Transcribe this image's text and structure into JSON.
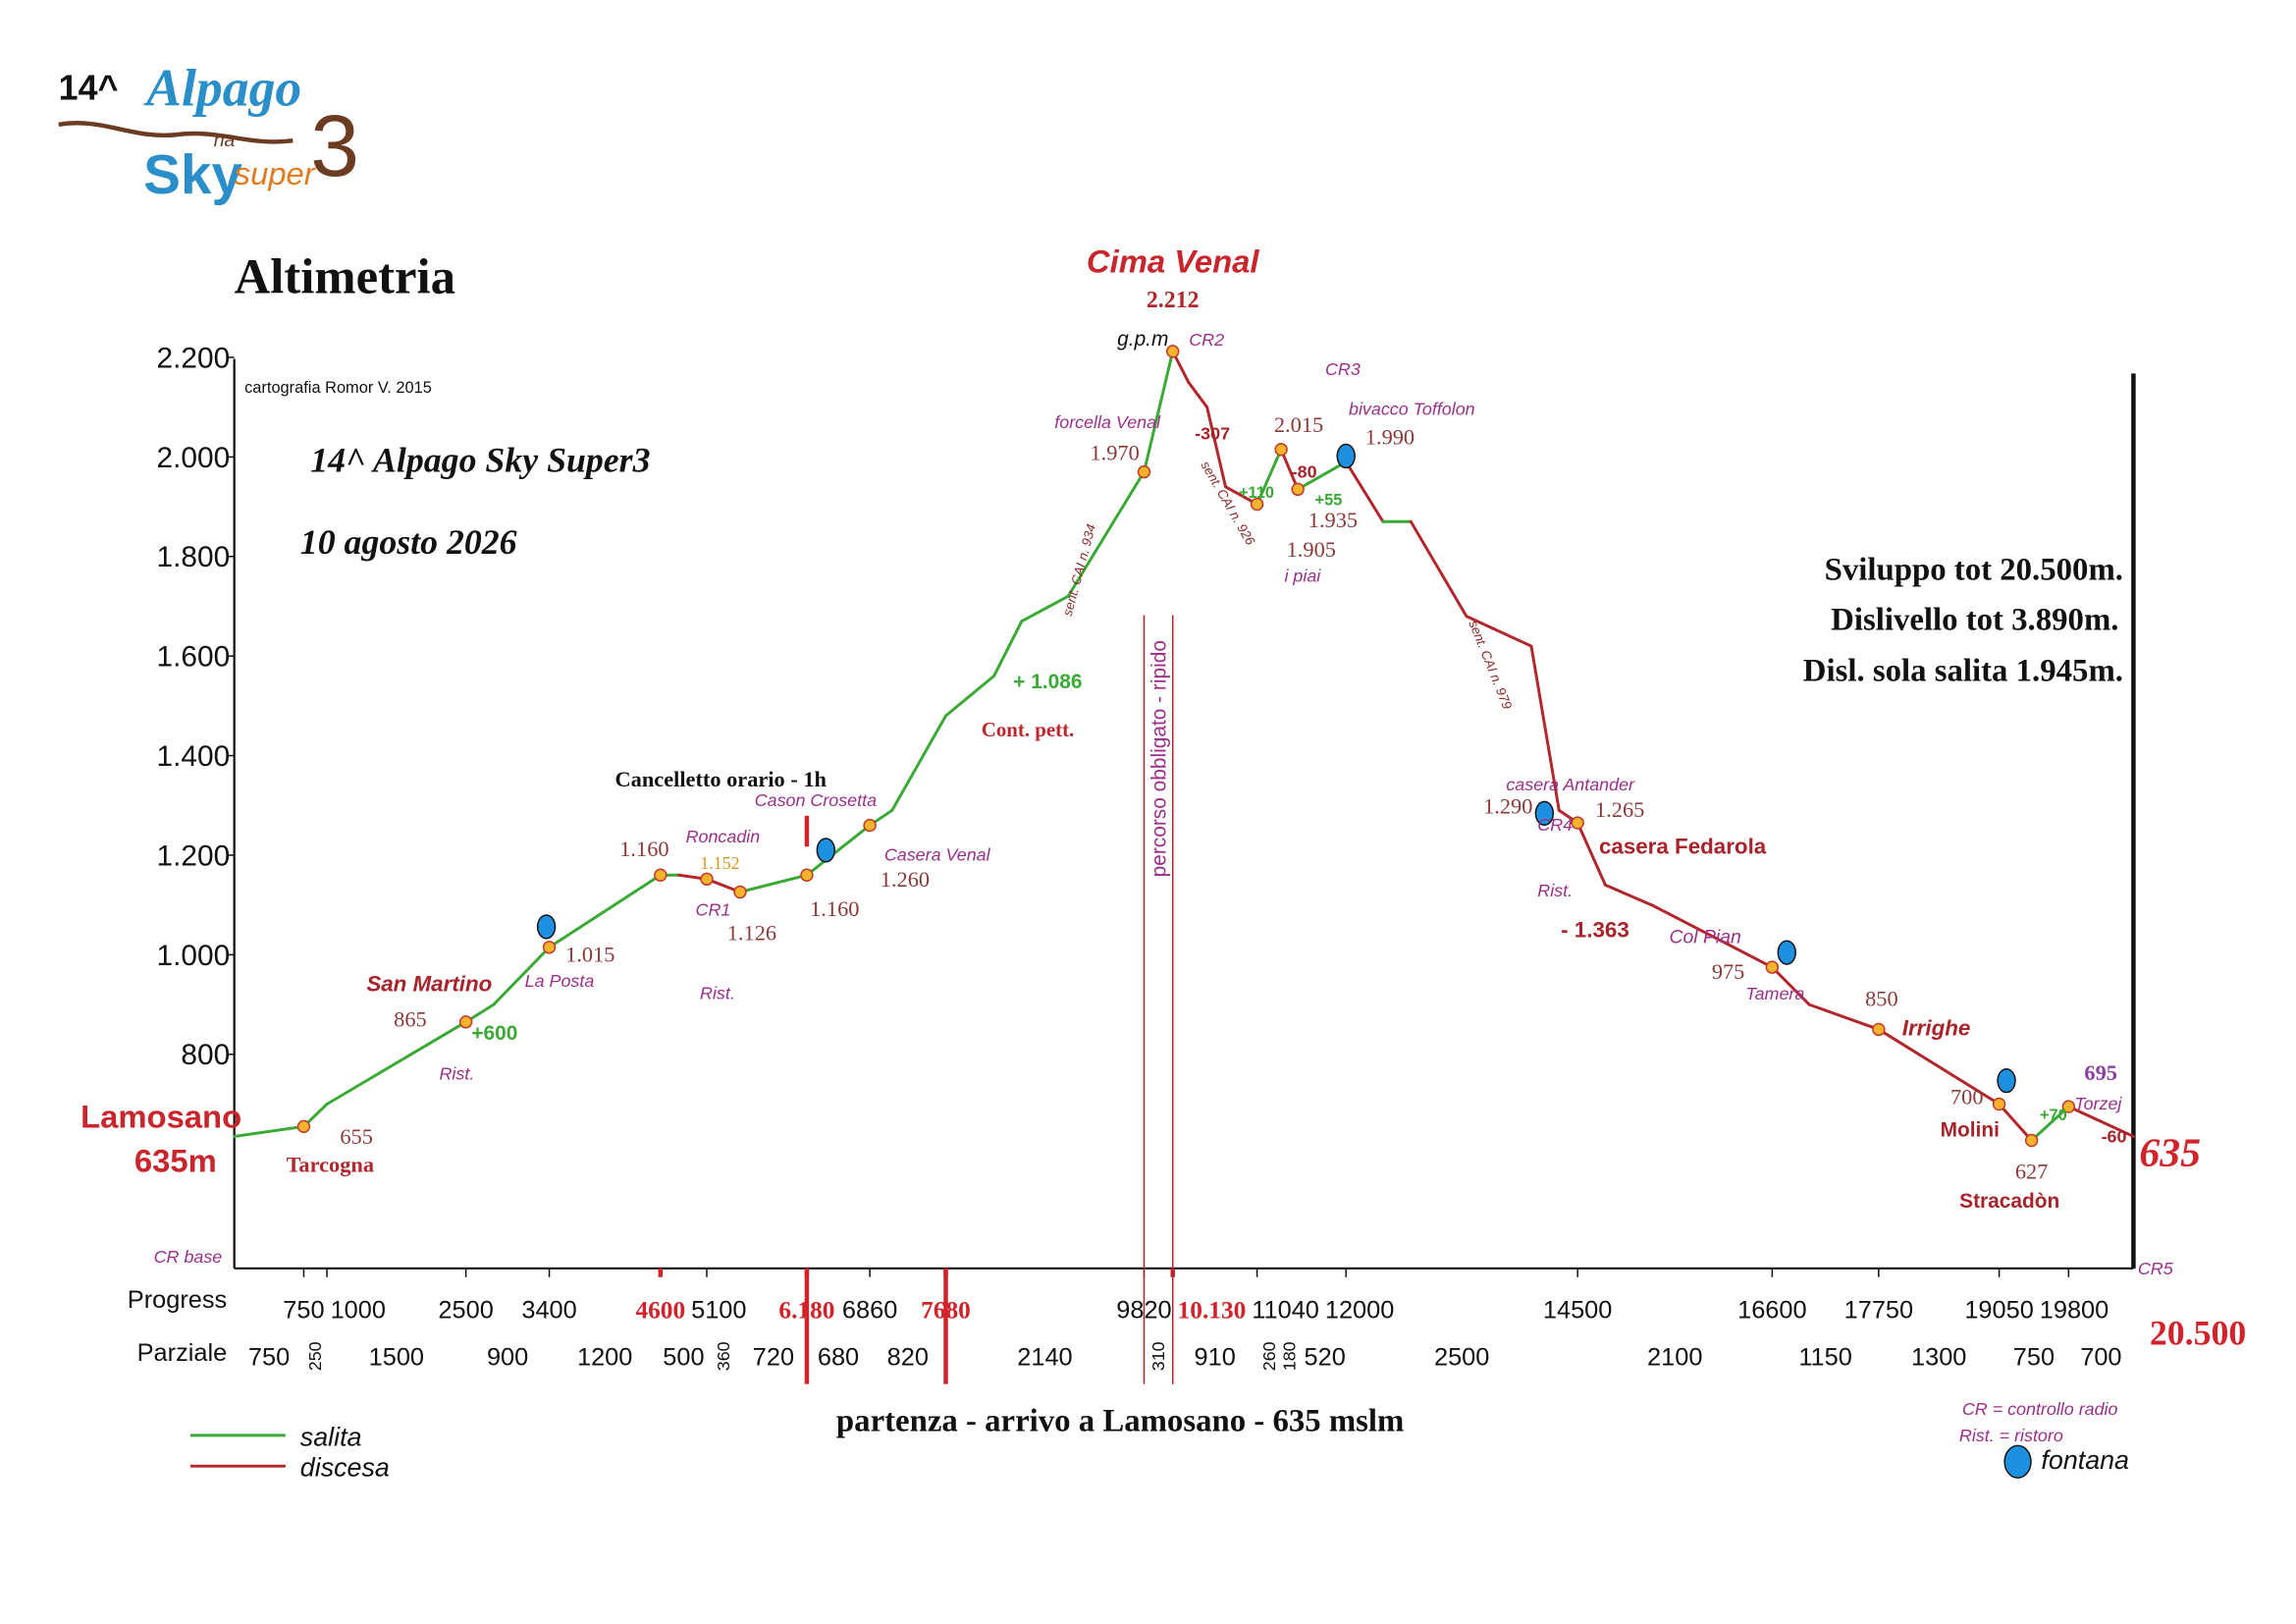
{
  "chart_data": {
    "type": "line",
    "title": "Altimetria",
    "logo": [
      "14^",
      "Alpago",
      "na",
      "Sky",
      "super",
      "3"
    ],
    "x": [
      0,
      750,
      1000,
      2500,
      2800,
      3400,
      4600,
      4800,
      5100,
      5460,
      6180,
      6860,
      7100,
      7680,
      8200,
      8500,
      9000,
      9820,
      10130,
      10300,
      10500,
      10700,
      11040,
      11300,
      11480,
      12000,
      12400,
      12700,
      13300,
      14000,
      14300,
      14500,
      14800,
      15300,
      16600,
      17000,
      17750,
      19050,
      19400,
      19800,
      20500
    ],
    "y": [
      635,
      655,
      700,
      865,
      900,
      1015,
      1160,
      1160,
      1152,
      1126,
      1160,
      1260,
      1290,
      1480,
      1560,
      1670,
      1720,
      1970,
      2212,
      2150,
      2100,
      1940,
      1905,
      2015,
      1935,
      1990,
      1870,
      1870,
      1680,
      1620,
      1290,
      1265,
      1140,
      1100,
      975,
      900,
      850,
      700,
      627,
      695,
      635
    ],
    "value_labels": [
      "635m",
      "655",
      null,
      "865",
      null,
      "1.015",
      "1.160",
      null,
      "1.152",
      "1.126",
      "1.160",
      "1.260",
      null,
      null,
      null,
      null,
      null,
      "1.970",
      "2.212",
      null,
      null,
      null,
      "1.905",
      "2.015",
      "1.935",
      "1.990",
      null,
      null,
      null,
      null,
      "1.290",
      "1.265",
      null,
      null,
      "975",
      null,
      "850",
      "700",
      "627",
      "695",
      "635"
    ],
    "place_labels": [
      "Lamosano",
      "Tarcogna",
      null,
      "San Martino",
      null,
      "La Posta",
      null,
      null,
      "Roncadin",
      null,
      "Cason Crosetta",
      "Casera Venal",
      null,
      "Cont. pett.",
      null,
      null,
      null,
      "forcella Venal",
      "Cima Venal",
      null,
      null,
      null,
      "i piai",
      null,
      null,
      "bivacco Toffolon",
      null,
      null,
      null,
      null,
      null,
      "casera Antander",
      null,
      null,
      "Tamera",
      null,
      "Irrighe",
      "Molini",
      "Stracadòn",
      "Torzej",
      null
    ],
    "xlim": [
      0,
      20500
    ],
    "ylim": [
      370,
      2200
    ],
    "yticks": [
      {
        "value": 800,
        "label": "800"
      },
      {
        "value": 1000,
        "label": "1.000"
      },
      {
        "value": 1200,
        "label": "1.200"
      },
      {
        "value": 1400,
        "label": "1.400"
      },
      {
        "value": 1600,
        "label": "1.600"
      },
      {
        "value": 1800,
        "label": "1.800"
      },
      {
        "value": 2000,
        "label": "2.000"
      },
      {
        "value": 2200,
        "label": "2.200"
      }
    ],
    "progress_label": "Progress",
    "xticks": [
      750,
      1000,
      2500,
      3400,
      4600,
      5100,
      {
        "value": 6180,
        "label": "6.180"
      },
      6860,
      7680,
      9820,
      {
        "value": 10130,
        "label": "10.130"
      },
      11040,
      12000,
      14500,
      16600,
      17750,
      19050,
      19800
    ],
    "xtick_colors": [
      "#111",
      "#111",
      "#111",
      "#111",
      "#d2232a",
      "#111",
      "#d2232a",
      "#111",
      "#d2232a",
      "#111",
      "#d2232a",
      "#111",
      "#111",
      "#111",
      "#111",
      "#111",
      "#111",
      "#111"
    ],
    "partial_label": "Parziale",
    "partials": [
      750,
      250,
      1500,
      900,
      1200,
      500,
      360,
      720,
      680,
      820,
      2140,
      310,
      910,
      260,
      180,
      520,
      2500,
      2100,
      1150,
      1300,
      750,
      700
    ],
    "legend": [
      {
        "name": "salita",
        "color": "#3aa935"
      },
      {
        "name": "discesa",
        "color": "#b3262c"
      }
    ],
    "notes": [
      "cartografia Romor V. 2015",
      "14^ Alpago Sky Super3",
      "10 agosto 2026",
      "Cancelletto orario - 1h",
      "g.p.m",
      "CR2",
      "CR3",
      "CR1",
      "CR4",
      "CR5",
      "CR base",
      "Rist.",
      "Rist.",
      "Rist.",
      "+600",
      "+ 1.086",
      "-307",
      "+110",
      "-80",
      "+55",
      "- 1.363",
      "+70",
      "-60",
      "sent. CAI n. 934",
      "sent. CAI n. 926",
      "sent. CAI n. 979",
      "percorso obbligato - ripido",
      "casera Fedarola",
      "Col Pian",
      "Sviluppo tot 20.500m.",
      "Dislivello tot 3.890m.",
      "Disl. sola salita 1.945m.",
      "partenza - arrivo a Lamosano - 635 mslm",
      "20.500",
      "CR = controllo radio",
      "Rist. = ristoro",
      "fontana"
    ]
  }
}
